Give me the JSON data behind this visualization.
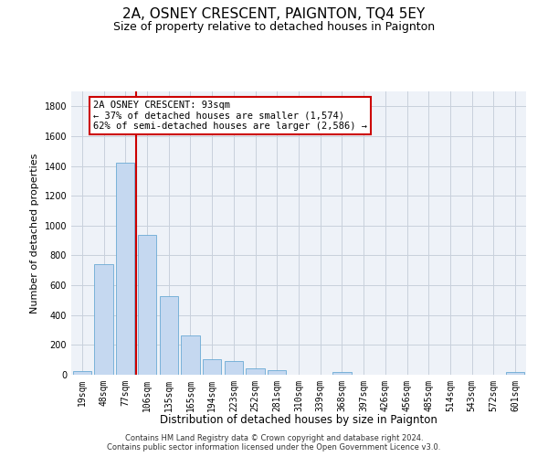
{
  "title": "2A, OSNEY CRESCENT, PAIGNTON, TQ4 5EY",
  "subtitle": "Size of property relative to detached houses in Paignton",
  "xlabel": "Distribution of detached houses by size in Paignton",
  "ylabel": "Number of detached properties",
  "bar_color": "#c5d8f0",
  "bar_edge_color": "#6aaad4",
  "grid_color": "#c8d0dc",
  "bg_color": "#eef2f8",
  "categories": [
    "19sqm",
    "48sqm",
    "77sqm",
    "106sqm",
    "135sqm",
    "165sqm",
    "194sqm",
    "223sqm",
    "252sqm",
    "281sqm",
    "310sqm",
    "339sqm",
    "368sqm",
    "397sqm",
    "426sqm",
    "456sqm",
    "485sqm",
    "514sqm",
    "543sqm",
    "572sqm",
    "601sqm"
  ],
  "values": [
    22,
    740,
    1420,
    940,
    530,
    265,
    105,
    95,
    42,
    28,
    0,
    0,
    18,
    0,
    0,
    0,
    0,
    0,
    0,
    0,
    18
  ],
  "vline_x_index": 2,
  "vline_color": "#cc0000",
  "annotation_text": "2A OSNEY CRESCENT: 93sqm\n← 37% of detached houses are smaller (1,574)\n62% of semi-detached houses are larger (2,586) →",
  "annotation_box_color": "#ffffff",
  "annotation_box_edge": "#cc0000",
  "ylim": [
    0,
    1900
  ],
  "yticks": [
    0,
    200,
    400,
    600,
    800,
    1000,
    1200,
    1400,
    1600,
    1800
  ],
  "footer": "Contains HM Land Registry data © Crown copyright and database right 2024.\nContains public sector information licensed under the Open Government Licence v3.0.",
  "title_fontsize": 11,
  "subtitle_fontsize": 9,
  "xlabel_fontsize": 8.5,
  "ylabel_fontsize": 8,
  "tick_fontsize": 7,
  "annotation_fontsize": 7.5,
  "footer_fontsize": 6
}
